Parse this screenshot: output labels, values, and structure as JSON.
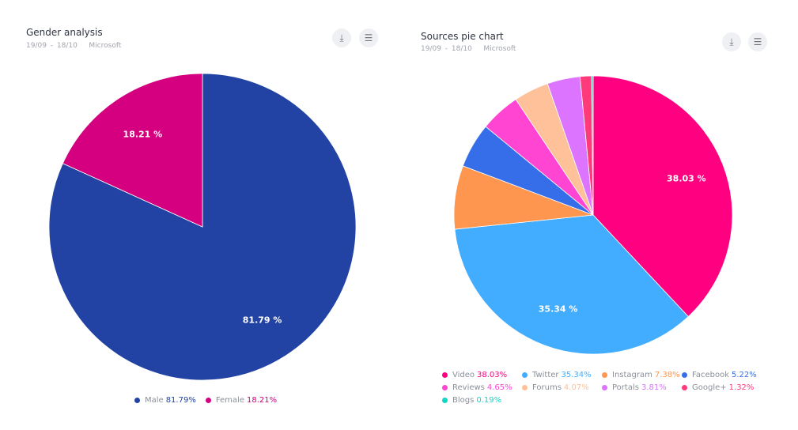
{
  "charts": [
    {
      "title": "Gender analysis",
      "subtitle": "19/09 - 18/10   Microsoft",
      "download_icon": "download-icon",
      "settings_icon": "sliders-icon"
    },
    {
      "title": "Sources pie chart",
      "subtitle": "19/09 - 18/10   Microsoft",
      "download_icon": "download-icon",
      "settings_icon": "sliders-icon"
    }
  ],
  "chart_data": [
    {
      "type": "pie",
      "title": "Gender analysis",
      "categories": [
        "Male",
        "Female"
      ],
      "values": [
        81.79,
        18.21
      ],
      "colors": [
        "#2243a3",
        "#d4007f"
      ],
      "labels": [
        "81.79 %",
        "18.21 %"
      ],
      "legend_values": [
        "81.79%",
        "18.21%"
      ],
      "legend_colors": [
        "#2243a3",
        "#d4007f"
      ],
      "legend": "bottom"
    },
    {
      "type": "pie",
      "title": "Sources pie chart",
      "categories": [
        "Video",
        "Twitter",
        "Instagram",
        "Facebook",
        "Reviews",
        "Forums",
        "Portals",
        "Google+",
        "Blogs"
      ],
      "values": [
        38.03,
        35.34,
        7.38,
        5.22,
        4.65,
        4.07,
        3.81,
        1.32,
        0.19
      ],
      "colors": [
        "#ff0080",
        "#42adff",
        "#ff9650",
        "#356ee8",
        "#ff45d2",
        "#ffc19a",
        "#dd74ff",
        "#ff3a7a",
        "#12d6c5"
      ],
      "labels": [
        "38.03 %",
        "35.34 %",
        "",
        "",
        "",
        "",
        "",
        "",
        ""
      ],
      "legend_values": [
        "38.03%",
        "35.34%",
        "7.38%",
        "5.22%",
        "4.65%",
        "4.07%",
        "3.81%",
        "1.32%",
        "0.19%"
      ],
      "legend": "bottom"
    }
  ]
}
